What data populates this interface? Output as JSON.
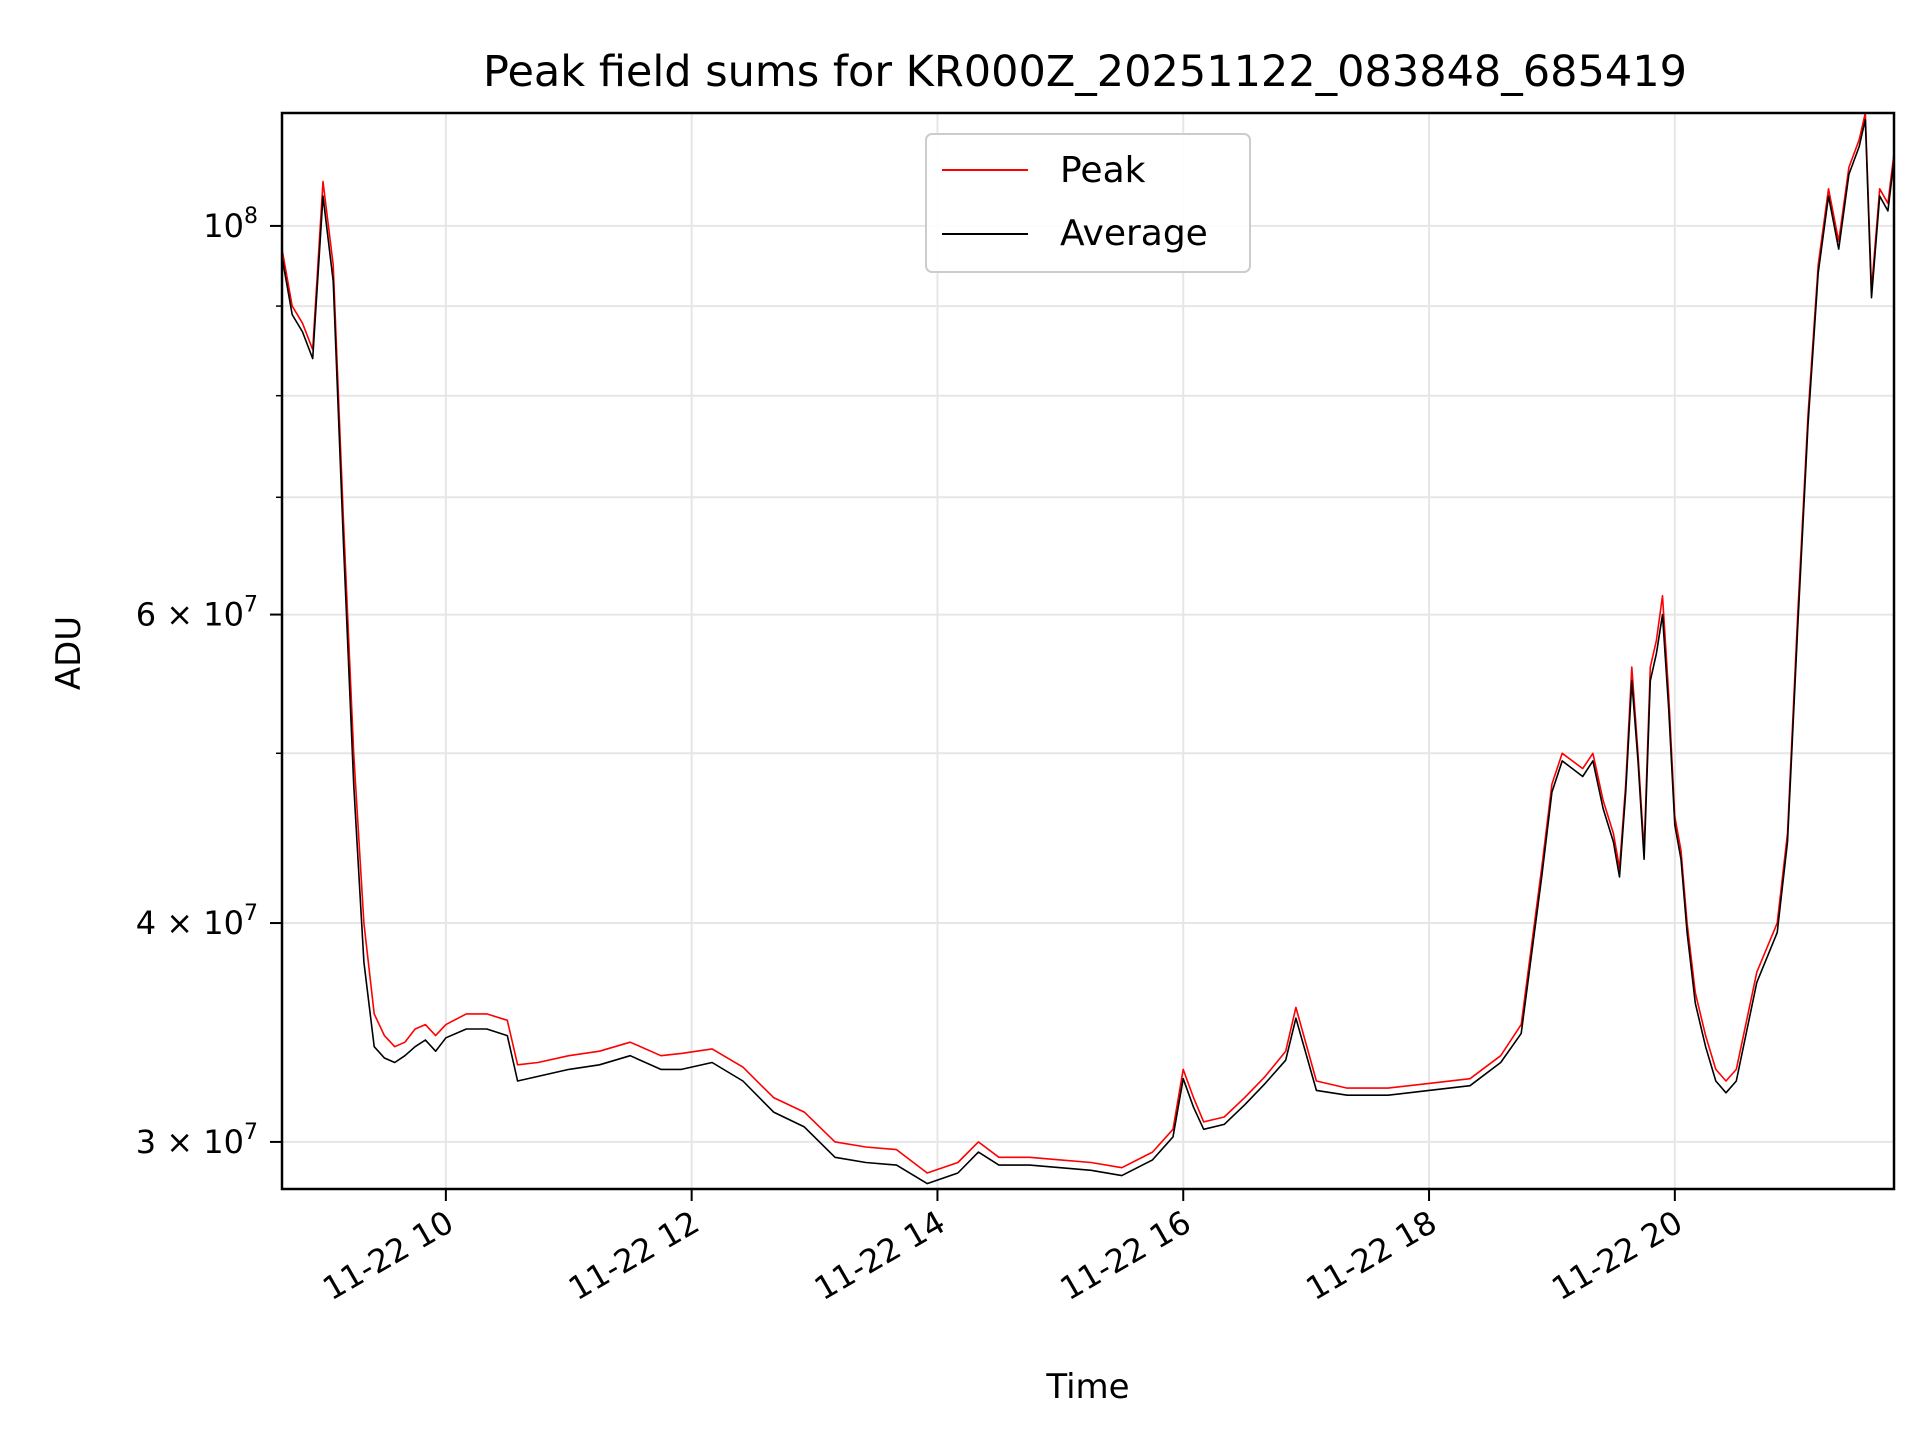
{
  "chart_data": {
    "type": "line",
    "title": "Peak field sums for KR000Z_20251122_083848_685419",
    "xlabel": "Time",
    "ylabel": "ADU",
    "yscale": "log",
    "ylim": [
      28200000,
      116000000
    ],
    "xlim": [
      "2025-11-22 08:40",
      "2025-11-22 21:47"
    ],
    "grid": true,
    "legend_position": "upper center",
    "x_ticks": [
      "2025-11-22 10:00",
      "2025-11-22 12:00",
      "2025-11-22 14:00",
      "2025-11-22 16:00",
      "2025-11-22 18:00",
      "2025-11-22 20:00"
    ],
    "x_tick_labels": [
      "11-22 10",
      "11-22 12",
      "11-22 14",
      "11-22 16",
      "11-22 18",
      "11-22 20"
    ],
    "y_ticks": [
      30000000,
      40000000,
      60000000,
      100000000
    ],
    "y_tick_labels": [
      {
        "base": "3",
        "exp": "7"
      },
      {
        "base": "4",
        "exp": "7"
      },
      {
        "base": "6",
        "exp": "7"
      },
      {
        "base": "",
        "exp": "8"
      }
    ],
    "x": [
      "2025-11-22 08:40",
      "2025-11-22 08:45",
      "2025-11-22 08:50",
      "2025-11-22 08:55",
      "2025-11-22 09:00",
      "2025-11-22 09:05",
      "2025-11-22 09:10",
      "2025-11-22 09:15",
      "2025-11-22 09:20",
      "2025-11-22 09:25",
      "2025-11-22 09:30",
      "2025-11-22 09:35",
      "2025-11-22 09:40",
      "2025-11-22 09:45",
      "2025-11-22 09:50",
      "2025-11-22 09:55",
      "2025-11-22 10:00",
      "2025-11-22 10:10",
      "2025-11-22 10:20",
      "2025-11-22 10:30",
      "2025-11-22 10:35",
      "2025-11-22 10:45",
      "2025-11-22 11:00",
      "2025-11-22 11:15",
      "2025-11-22 11:30",
      "2025-11-22 11:45",
      "2025-11-22 11:55",
      "2025-11-22 12:10",
      "2025-11-22 12:25",
      "2025-11-22 12:40",
      "2025-11-22 12:55",
      "2025-11-22 13:10",
      "2025-11-22 13:25",
      "2025-11-22 13:40",
      "2025-11-22 13:55",
      "2025-11-22 14:10",
      "2025-11-22 14:20",
      "2025-11-22 14:30",
      "2025-11-22 14:45",
      "2025-11-22 15:00",
      "2025-11-22 15:15",
      "2025-11-22 15:30",
      "2025-11-22 15:45",
      "2025-11-22 15:55",
      "2025-11-22 16:00",
      "2025-11-22 16:05",
      "2025-11-22 16:10",
      "2025-11-22 16:20",
      "2025-11-22 16:30",
      "2025-11-22 16:40",
      "2025-11-22 16:50",
      "2025-11-22 16:55",
      "2025-11-22 17:05",
      "2025-11-22 17:20",
      "2025-11-22 17:40",
      "2025-11-22 18:00",
      "2025-11-22 18:20",
      "2025-11-22 18:35",
      "2025-11-22 18:45",
      "2025-11-22 18:55",
      "2025-11-22 19:00",
      "2025-11-22 19:05",
      "2025-11-22 19:10",
      "2025-11-22 19:15",
      "2025-11-22 19:20",
      "2025-11-22 19:25",
      "2025-11-22 19:30",
      "2025-11-22 19:33",
      "2025-11-22 19:36",
      "2025-11-22 19:39",
      "2025-11-22 19:42",
      "2025-11-22 19:45",
      "2025-11-22 19:48",
      "2025-11-22 19:51",
      "2025-11-22 19:54",
      "2025-11-22 19:57",
      "2025-11-22 20:00",
      "2025-11-22 20:03",
      "2025-11-22 20:06",
      "2025-11-22 20:10",
      "2025-11-22 20:15",
      "2025-11-22 20:20",
      "2025-11-22 20:25",
      "2025-11-22 20:30",
      "2025-11-22 20:40",
      "2025-11-22 20:50",
      "2025-11-22 20:55",
      "2025-11-22 21:00",
      "2025-11-22 21:05",
      "2025-11-22 21:10",
      "2025-11-22 21:15",
      "2025-11-22 21:20",
      "2025-11-22 21:25",
      "2025-11-22 21:30",
      "2025-11-22 21:33",
      "2025-11-22 21:36",
      "2025-11-22 21:40",
      "2025-11-22 21:44",
      "2025-11-22 21:47"
    ],
    "series": [
      {
        "name": "Peak",
        "color": "#ff0000",
        "values": [
          97000000,
          90000000,
          88000000,
          85000000,
          106000000,
          95000000,
          68000000,
          50000000,
          40000000,
          35500000,
          34500000,
          34000000,
          34200000,
          34800000,
          35000000,
          34500000,
          35000000,
          35500000,
          35500000,
          35200000,
          33200000,
          33300000,
          33600000,
          33800000,
          34200000,
          33600000,
          33700000,
          33900000,
          33100000,
          31800000,
          31200000,
          30000000,
          29800000,
          29700000,
          28800000,
          29200000,
          30000000,
          29400000,
          29400000,
          29300000,
          29200000,
          29000000,
          29600000,
          30500000,
          33000000,
          31800000,
          30800000,
          31000000,
          31800000,
          32700000,
          33800000,
          35800000,
          32500000,
          32200000,
          32200000,
          32400000,
          32600000,
          33600000,
          35000000,
          43000000,
          48000000,
          50000000,
          49500000,
          49000000,
          50000000,
          47000000,
          45000000,
          43000000,
          48000000,
          56000000,
          50000000,
          44000000,
          56000000,
          58000000,
          61500000,
          54000000,
          46000000,
          44000000,
          40000000,
          36500000,
          34500000,
          33000000,
          32500000,
          33000000,
          37500000,
          40000000,
          45000000,
          60000000,
          78000000,
          95000000,
          105000000,
          98000000,
          108000000,
          112000000,
          116000000,
          92000000,
          105000000,
          103000000,
          110000000
        ]
      },
      {
        "name": "Average",
        "color": "#000000",
        "values": [
          96000000,
          89000000,
          87000000,
          84000000,
          104000000,
          93000000,
          66000000,
          48000000,
          38000000,
          34000000,
          33500000,
          33300000,
          33600000,
          34000000,
          34300000,
          33800000,
          34400000,
          34800000,
          34800000,
          34500000,
          32500000,
          32700000,
          33000000,
          33200000,
          33600000,
          33000000,
          33000000,
          33300000,
          32500000,
          31200000,
          30600000,
          29400000,
          29200000,
          29100000,
          28400000,
          28800000,
          29600000,
          29100000,
          29100000,
          29000000,
          28900000,
          28700000,
          29300000,
          30200000,
          32600000,
          31400000,
          30500000,
          30700000,
          31500000,
          32400000,
          33400000,
          35300000,
          32100000,
          31900000,
          31900000,
          32100000,
          32300000,
          33300000,
          34600000,
          42500000,
          47500000,
          49500000,
          49000000,
          48500000,
          49500000,
          46500000,
          44500000,
          42500000,
          47500000,
          55000000,
          49500000,
          43500000,
          55000000,
          57000000,
          60000000,
          53000000,
          45500000,
          43500000,
          39500000,
          36000000,
          34000000,
          32500000,
          32000000,
          32500000,
          37000000,
          39500000,
          44500000,
          59000000,
          77000000,
          94000000,
          104000000,
          97000000,
          107000000,
          111000000,
          115000000,
          91000000,
          104000000,
          102000000,
          109000000
        ]
      }
    ]
  }
}
